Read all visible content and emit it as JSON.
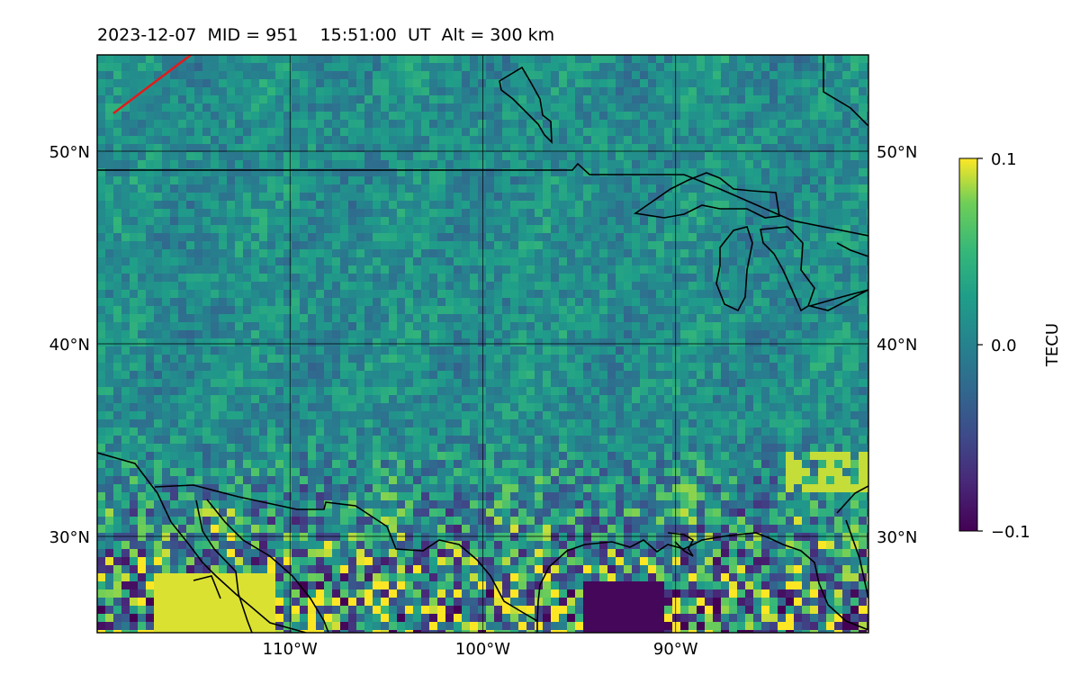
{
  "title": "2023-12-07  MID = 951    15:51:00  UT  Alt = 300 km",
  "map": {
    "lon_range": [
      -120,
      -80
    ],
    "lat_range": [
      25,
      55
    ],
    "lat_ticks": [
      {
        "value": 30,
        "label": "30°N"
      },
      {
        "value": 40,
        "label": "40°N"
      },
      {
        "value": 50,
        "label": "50°N"
      }
    ],
    "lon_ticks": [
      {
        "value": -110,
        "label": "110°W"
      },
      {
        "value": -100,
        "label": "100°W"
      },
      {
        "value": -90,
        "label": "90°W"
      }
    ],
    "coastline_color": "#000000",
    "track_color": "#e31a1c"
  },
  "colorbar": {
    "label": "TECU",
    "ticks": [
      {
        "value": 0.1,
        "label": "0.1"
      },
      {
        "value": 0.0,
        "label": "0.0"
      },
      {
        "value": -0.1,
        "label": "−0.1"
      }
    ],
    "range": [
      -0.1,
      0.1
    ],
    "colormap": "viridis"
  }
}
